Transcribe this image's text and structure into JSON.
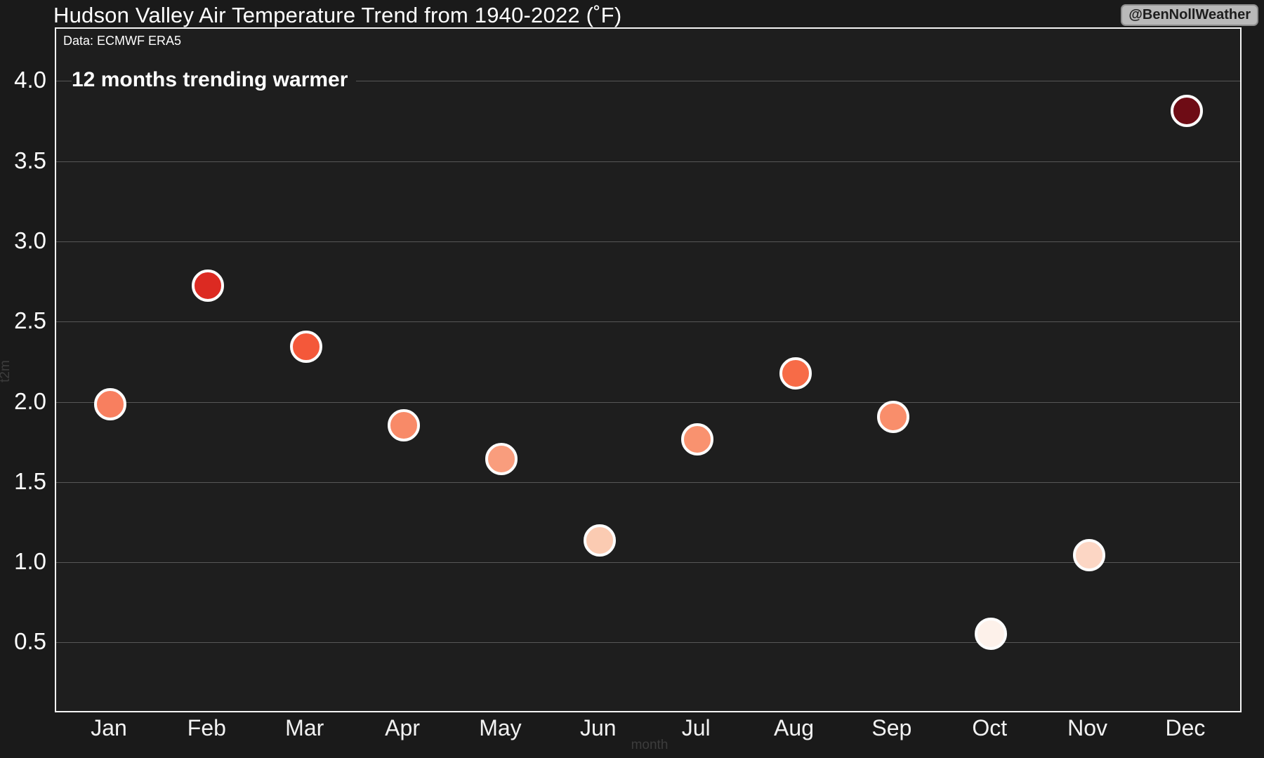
{
  "header": {
    "title": "Hudson Valley Air Temperature Trend from 1940-2022 (˚F)",
    "watermark": "@BenNollWeather"
  },
  "chart_data": {
    "type": "scatter",
    "title": "Hudson Valley Air Temperature Trend from 1940-2022 (˚F)",
    "subtitle": "Data: ECMWF ERA5",
    "annotation": "12 months trending warmer",
    "xlabel": "month",
    "ylabel": "t2m",
    "categories": [
      "Jan",
      "Feb",
      "Mar",
      "Apr",
      "May",
      "Jun",
      "Jul",
      "Aug",
      "Sep",
      "Oct",
      "Nov",
      "Dec"
    ],
    "values": [
      1.99,
      2.73,
      2.35,
      1.86,
      1.65,
      1.14,
      1.77,
      2.18,
      1.91,
      0.56,
      1.05,
      3.82
    ],
    "point_colors": [
      "#f87f5f",
      "#dc2a22",
      "#f4583a",
      "#f88a68",
      "#f99d7d",
      "#fbcbb2",
      "#f9926f",
      "#f76b47",
      "#f98e6b",
      "#fdf1ea",
      "#fcd6c4",
      "#6e0c15"
    ],
    "point_stroke": "#fdfdfd",
    "y_ticks": [
      4.0,
      3.5,
      3.0,
      2.5,
      2.0,
      1.5,
      1.0,
      0.5
    ],
    "ylim": [
      0.06,
      4.33
    ],
    "grid": true,
    "legend": "none",
    "colors": {
      "background": "#1a1a1a",
      "plot_background": "#1e1e1e",
      "gridline": "#6b6b6b",
      "axis_border": "#f5f5f5",
      "text": "#ffffff",
      "muted_axis_title": "#3c3c3c",
      "watermark_bg": "#b9b9b9"
    }
  }
}
